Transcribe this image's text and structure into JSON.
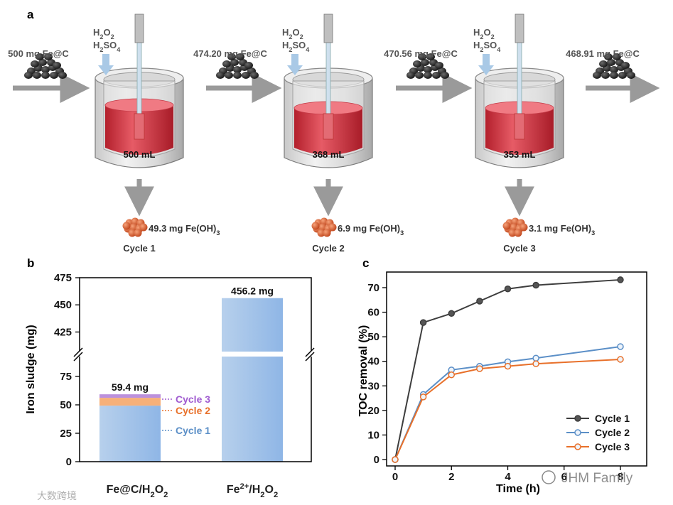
{
  "panel_a": {
    "panel_label": "a",
    "reagents": [
      "H2O2",
      "H2SO4"
    ],
    "inputs": [
      "500 mg Fe@C",
      "474.20 mg Fe@C",
      "470.56 mg Fe@C",
      "468.91 mg Fe@C"
    ],
    "volumes": [
      "500 mL",
      "368 mL",
      "353 mL"
    ],
    "sludge": [
      "49.3 mg Fe(OH)3",
      "6.9 mg Fe(OH)3",
      "3.1 mg Fe(OH)3"
    ],
    "cycles": [
      "Cycle 1",
      "Cycle 2",
      "Cycle 3"
    ],
    "colors": {
      "liquid": "#d9323f",
      "arrow": "#9a9a9a",
      "reagent_arrow": "#a9c9e6",
      "sludge": "#d4521f",
      "catalyst": "#2a2a2a"
    }
  },
  "chart_data": [
    {
      "panel_label": "b",
      "type": "bar",
      "ylabel": "Iron sludge (mg)",
      "categories": [
        "Fe@C/H2O2",
        "Fe2+/H2O2"
      ],
      "axis_break": {
        "lower": [
          0,
          95
        ],
        "upper": [
          405,
          475
        ]
      },
      "lower_ticks": [
        0,
        25,
        50,
        75
      ],
      "upper_ticks": [
        425,
        450,
        475
      ],
      "stacked": [
        {
          "name": "Cycle 1",
          "value": 49.3,
          "color": "#a9c8ea"
        },
        {
          "name": "Cycle 2",
          "value": 6.9,
          "color": "#f4a261"
        },
        {
          "name": "Cycle 3",
          "value": 3.1,
          "color": "#b07ed6"
        }
      ],
      "totals": [
        59.4,
        456.2
      ],
      "total_labels": [
        "59.4 mg",
        "456.2 mg"
      ],
      "bar_color": "#a9c8ea"
    },
    {
      "panel_label": "c",
      "type": "line",
      "xlabel": "Time (h)",
      "ylabel": "TOC removal (%)",
      "xlim": [
        0,
        8.5
      ],
      "ylim": [
        -1,
        74
      ],
      "xticks": [
        0,
        2,
        4,
        6,
        8
      ],
      "yticks": [
        0,
        10,
        20,
        30,
        40,
        50,
        60,
        70
      ],
      "x": [
        0,
        1,
        2,
        3,
        4,
        5,
        8
      ],
      "series": [
        {
          "name": "Cycle 1",
          "color": "#3d3d3d",
          "values": [
            0,
            55.8,
            59.5,
            64.5,
            69.5,
            71.0,
            73.2
          ]
        },
        {
          "name": "Cycle 2",
          "color": "#5b8fc7",
          "values": [
            0,
            26.5,
            36.5,
            38.0,
            39.8,
            41.3,
            46.0
          ]
        },
        {
          "name": "Cycle 3",
          "color": "#e8702a",
          "values": [
            0,
            25.5,
            34.5,
            37.0,
            38.0,
            39.0,
            40.8
          ]
        }
      ],
      "legend_position": "bottom-right"
    }
  ],
  "watermarks": [
    "JHM Family",
    "大数跨境"
  ]
}
